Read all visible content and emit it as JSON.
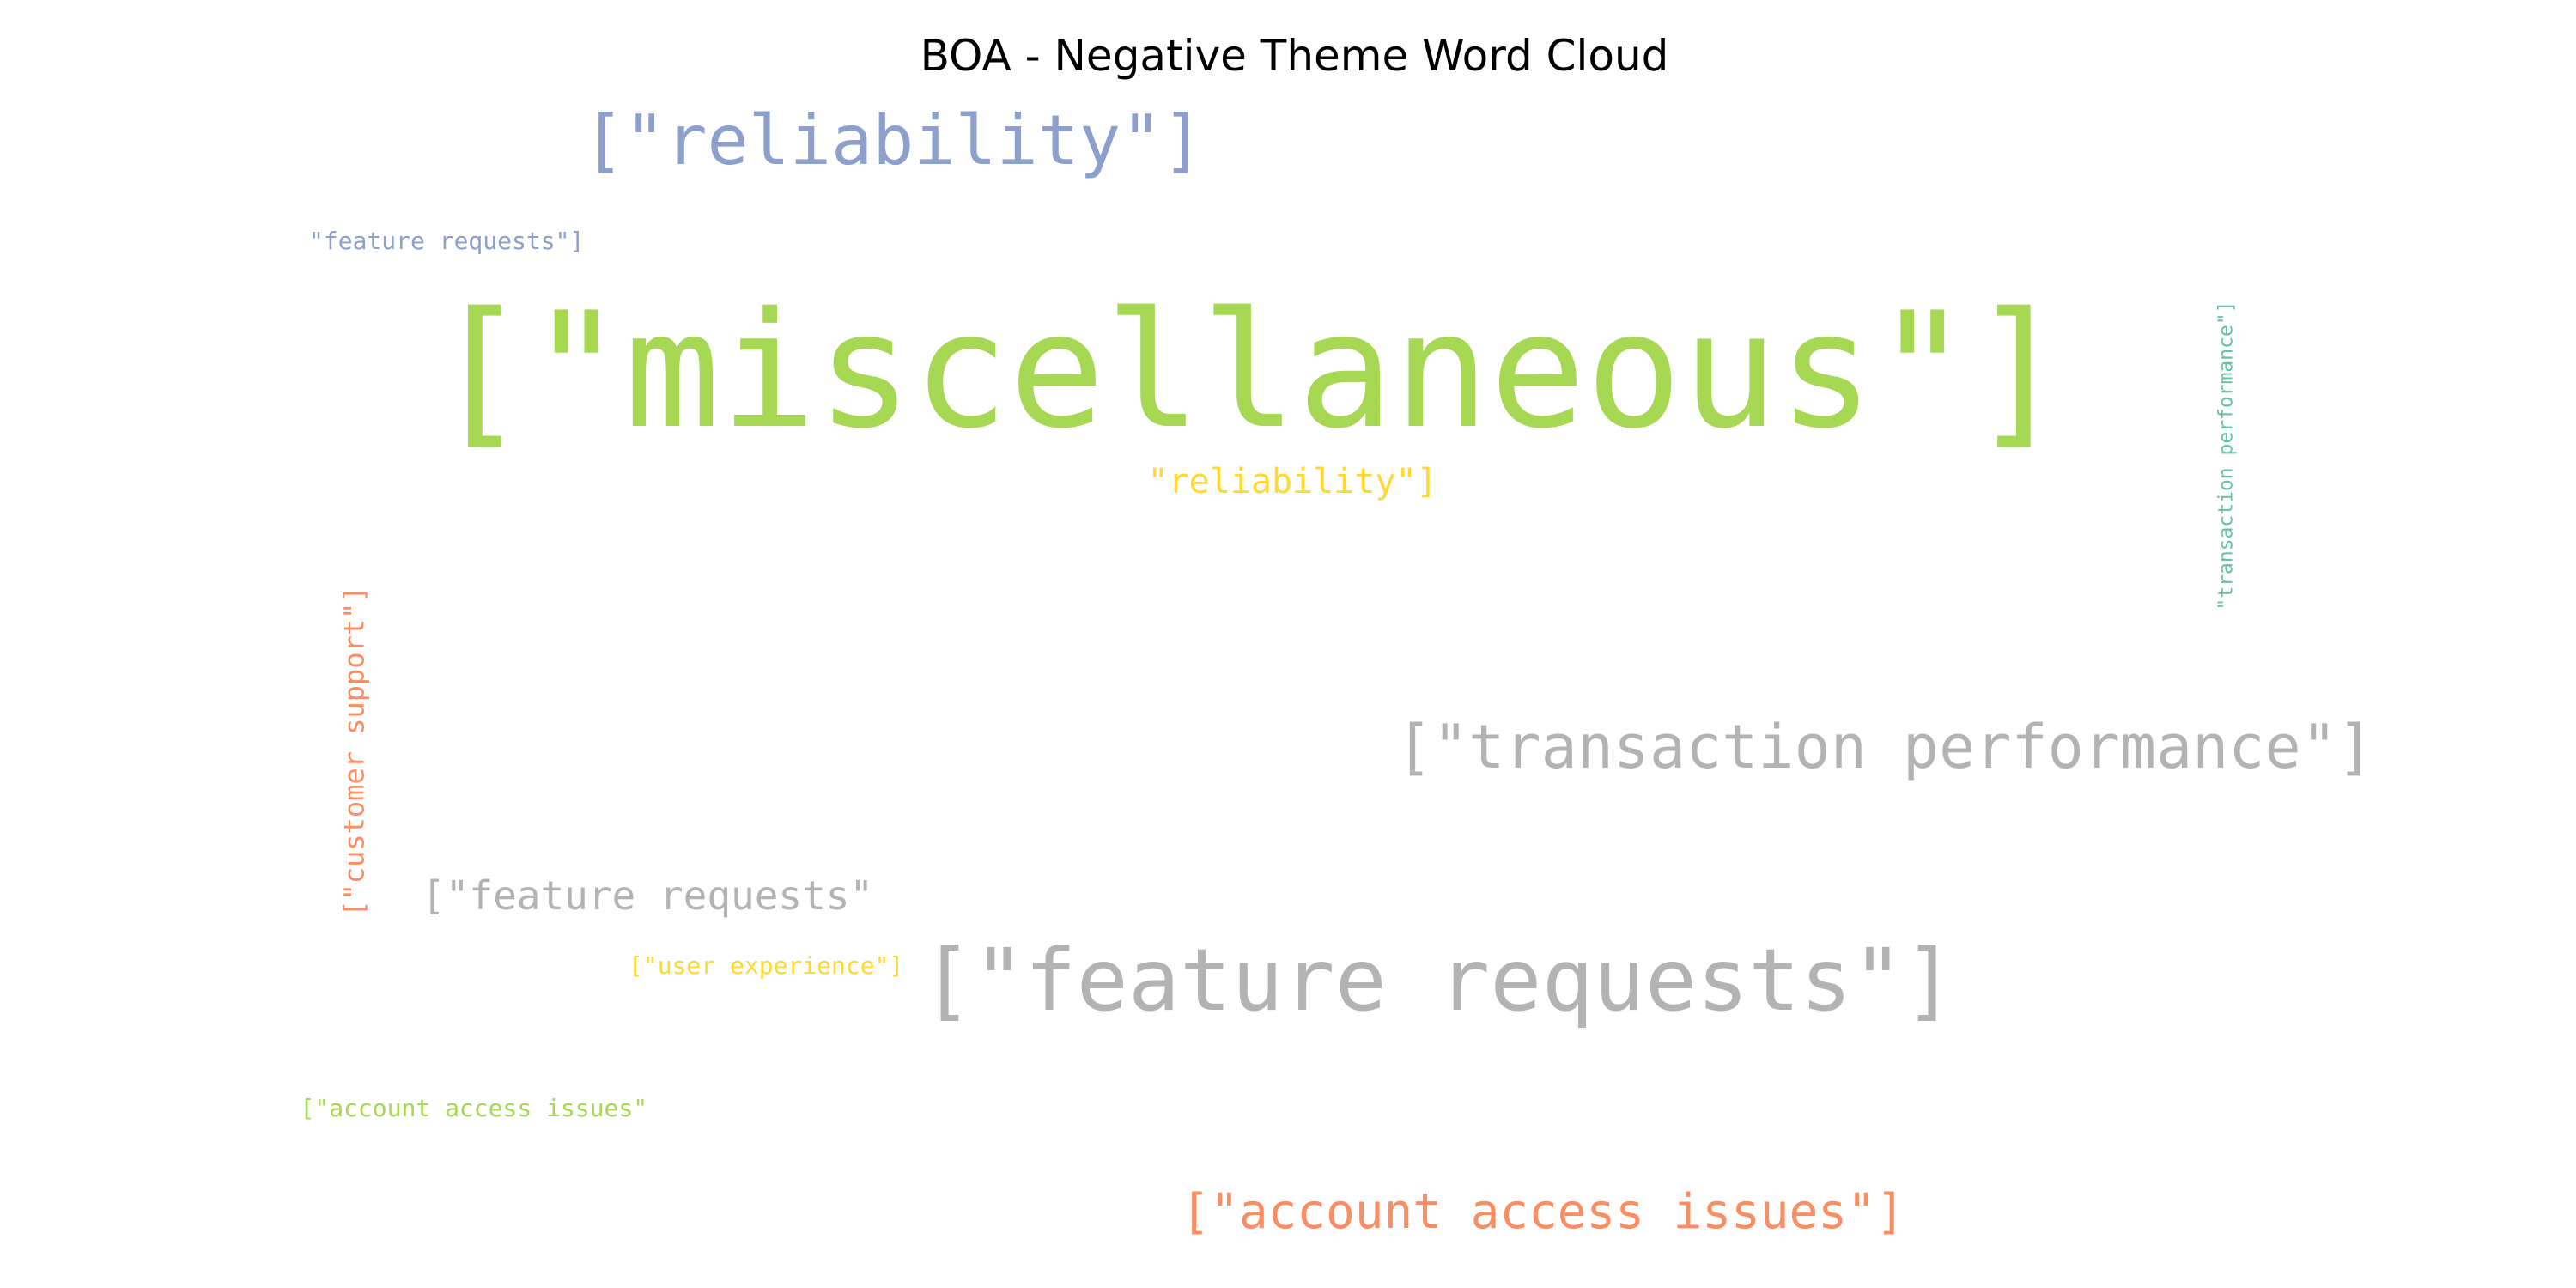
{
  "chart_data": {
    "type": "wordcloud",
    "title": "BOA - Negative Theme Word Cloud",
    "words": [
      {
        "text": "[\"miscellaneous\"]",
        "color": "#a6d854"
      },
      {
        "text": "[\"feature requests\"]",
        "color": "#b3b3b3"
      },
      {
        "text": "[\"transaction performance\"]",
        "color": "#b3b3b3"
      },
      {
        "text": "[\"reliability\"]",
        "color": "#8da0cb"
      },
      {
        "text": "[\"account access issues\"]",
        "color": "#fc8d62"
      },
      {
        "text": "[\"feature requests\"",
        "color": "#b3b3b3"
      },
      {
        "text": "\"reliability\"]",
        "color": "#ffd92f"
      },
      {
        "text": "[\"customer support\"]",
        "color": "#fc8d62",
        "orientation": "vertical"
      },
      {
        "text": "\"transaction performance\"]",
        "color": "#66c2a5",
        "orientation": "vertical"
      },
      {
        "text": "\"feature requests\"]",
        "color": "#8da0cb"
      },
      {
        "text": "[\"account access issues\"",
        "color": "#a6d854"
      },
      {
        "text": "[\"user experience\"]",
        "color": "#ffd92f"
      }
    ]
  }
}
